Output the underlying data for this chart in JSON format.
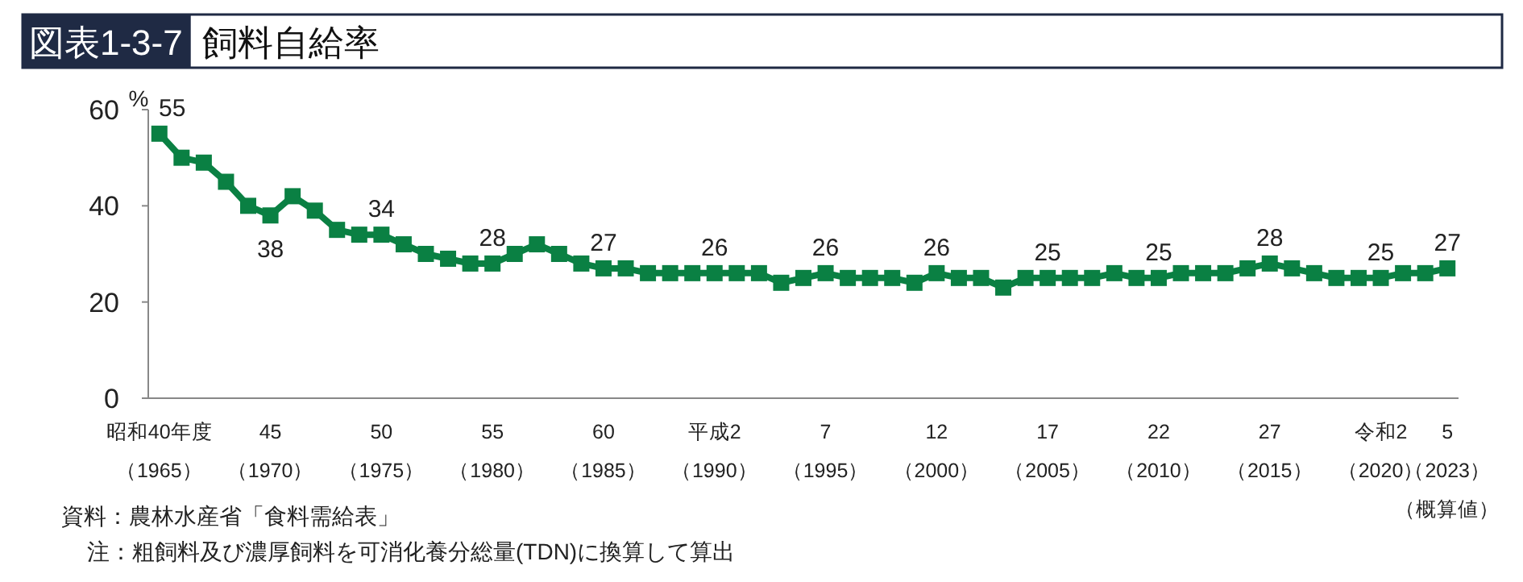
{
  "chart_data": {
    "type": "line",
    "title": "図表1-3-7 飼料自給率",
    "ylabel": "%",
    "categories": [
      "昭和40年度（1965）",
      null,
      null,
      null,
      null,
      "45（1970）",
      null,
      null,
      null,
      null,
      "50（1975）",
      null,
      null,
      null,
      null,
      "55（1980）",
      null,
      null,
      null,
      null,
      "60（1985）",
      null,
      null,
      null,
      null,
      "平成2（1990）",
      null,
      null,
      null,
      null,
      "7（1995）",
      null,
      null,
      null,
      null,
      "12（2000）",
      null,
      null,
      null,
      null,
      "17（2005）",
      null,
      null,
      null,
      null,
      "22（2010）",
      null,
      null,
      null,
      null,
      "27（2015）",
      null,
      null,
      null,
      null,
      "令和2（2020）",
      null,
      null,
      "5（2023）（概算値）"
    ],
    "series": [
      {
        "color": "#0a8043",
        "values": [
          55,
          50,
          49,
          45,
          40,
          38,
          42,
          39,
          35,
          34,
          34,
          32,
          30,
          29,
          28,
          28,
          30,
          32,
          30,
          28,
          27,
          27,
          26,
          26,
          26,
          26,
          26,
          26,
          24,
          25,
          26,
          25,
          25,
          25,
          24,
          26,
          25,
          25,
          23,
          25,
          25,
          25,
          25,
          26,
          25,
          25,
          26,
          26,
          26,
          27,
          28,
          27,
          26,
          25,
          25,
          25,
          26,
          26,
          27
        ],
        "value_labels": [
          "55",
          null,
          null,
          null,
          null,
          "38",
          null,
          null,
          null,
          null,
          "34",
          null,
          null,
          null,
          null,
          "28",
          null,
          null,
          null,
          null,
          "27",
          null,
          null,
          null,
          null,
          "26",
          null,
          null,
          null,
          null,
          "26",
          null,
          null,
          null,
          null,
          "26",
          null,
          null,
          null,
          null,
          "25",
          null,
          null,
          null,
          null,
          "25",
          null,
          null,
          null,
          null,
          "28",
          null,
          null,
          null,
          null,
          "25",
          null,
          null,
          "27"
        ]
      }
    ],
    "ylim": [
      0,
      60
    ],
    "yticks": [
      0,
      20,
      40,
      60
    ],
    "grid": false,
    "marker": "square",
    "line_style": "solid",
    "annotations": [
      "資料：農林水産省「食料需給表」",
      "注：粗飼料及び濃厚飼料を可消化養分総量(TDN)に換算して算出"
    ]
  }
}
